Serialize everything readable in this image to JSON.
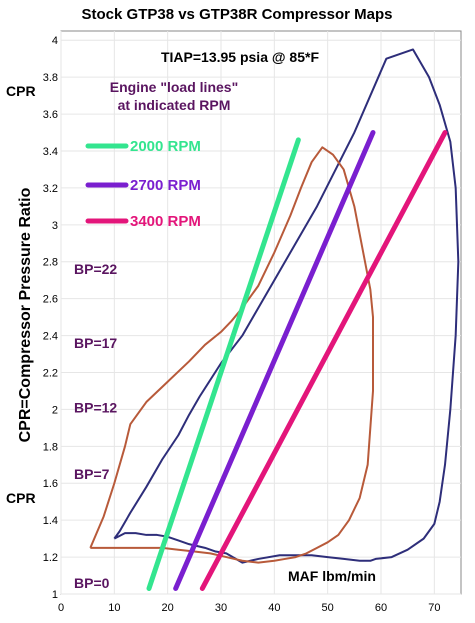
{
  "chart_data": {
    "type": "line",
    "title": "Stock GTP38 vs GTP38R Compressor Maps",
    "subtitle": "TIAP=13.95 psia @ 85*F",
    "annotation": "Engine \"load lines\"\nat indicated RPM",
    "xlabel": "MAF lbm/min",
    "ylabel": "CPR=Compressor Pressure Ratio",
    "ylabel_side_top": "CPR",
    "ylabel_side_bottom": "CPR",
    "xlim": [
      0,
      75
    ],
    "ylim": [
      1,
      4.05
    ],
    "x_ticks": [
      0,
      10,
      20,
      30,
      40,
      50,
      60,
      70
    ],
    "y_ticks": [
      1,
      1.2,
      1.4,
      1.6,
      1.8,
      2,
      2.2,
      2.4,
      2.6,
      2.8,
      3,
      3.2,
      3.4,
      3.6,
      3.8,
      4
    ],
    "boost_labels": [
      {
        "text": "BP=22",
        "y": 2.76
      },
      {
        "text": "BP=17",
        "y": 2.36
      },
      {
        "text": "BP=12",
        "y": 2.01
      },
      {
        "text": "BP=7",
        "y": 1.65
      },
      {
        "text": "BP=0",
        "y": 1.06
      }
    ],
    "series": [
      {
        "name": "2000 RPM",
        "color": "#33e58f",
        "width": 5,
        "x": [
          16.5,
          44.5
        ],
        "y": [
          1.03,
          3.46
        ]
      },
      {
        "name": "2700 RPM",
        "color": "#7a1fcf",
        "width": 5,
        "x": [
          21.5,
          58.5
        ],
        "y": [
          1.03,
          3.5
        ]
      },
      {
        "name": "3400 RPM",
        "color": "#e3157a",
        "width": 5,
        "x": [
          26.5,
          72.0
        ],
        "y": [
          1.03,
          3.5
        ]
      }
    ],
    "maps": [
      {
        "color": "#2e2e7a",
        "width": 2,
        "x": [
          10,
          11,
          13,
          16,
          19,
          22,
          24,
          26,
          28,
          30,
          34,
          40,
          48,
          55,
          61,
          66,
          69,
          71,
          73,
          74,
          74.5,
          74,
          73,
          72,
          71,
          70,
          68,
          65,
          62,
          59,
          58,
          56,
          53,
          50,
          47,
          44,
          41,
          37,
          34,
          31,
          29,
          27,
          24,
          22,
          20,
          18,
          16,
          14,
          12,
          10
        ],
        "y": [
          1.3,
          1.34,
          1.44,
          1.58,
          1.73,
          1.86,
          1.97,
          2.07,
          2.16,
          2.25,
          2.4,
          2.7,
          3.1,
          3.5,
          3.9,
          3.95,
          3.8,
          3.65,
          3.45,
          3.2,
          2.8,
          2.4,
          2.0,
          1.7,
          1.5,
          1.38,
          1.3,
          1.24,
          1.2,
          1.19,
          1.18,
          1.18,
          1.19,
          1.2,
          1.21,
          1.21,
          1.21,
          1.19,
          1.17,
          1.22,
          1.23,
          1.25,
          1.27,
          1.29,
          1.31,
          1.32,
          1.32,
          1.33,
          1.33,
          1.3
        ]
      },
      {
        "color": "#b85a3a",
        "width": 2,
        "x": [
          5.5,
          8,
          10,
          12,
          13,
          16,
          20,
          24,
          27,
          30,
          32,
          34,
          37,
          40,
          43,
          45,
          47,
          49,
          51,
          53,
          55,
          56,
          57,
          58,
          58.5,
          58.5,
          57.5,
          56,
          54,
          52,
          50,
          48,
          46,
          44,
          42,
          40,
          37,
          34,
          31,
          28,
          25,
          22,
          19,
          16,
          13,
          10,
          7,
          5.5
        ],
        "y": [
          1.25,
          1.42,
          1.6,
          1.8,
          1.92,
          2.04,
          2.15,
          2.26,
          2.35,
          2.42,
          2.48,
          2.55,
          2.67,
          2.85,
          3.05,
          3.2,
          3.34,
          3.42,
          3.38,
          3.3,
          3.1,
          2.95,
          2.8,
          2.65,
          2.5,
          2.1,
          1.7,
          1.52,
          1.4,
          1.32,
          1.28,
          1.25,
          1.22,
          1.2,
          1.19,
          1.18,
          1.17,
          1.18,
          1.2,
          1.22,
          1.23,
          1.24,
          1.25,
          1.25,
          1.25,
          1.25,
          1.25,
          1.25
        ]
      }
    ]
  }
}
